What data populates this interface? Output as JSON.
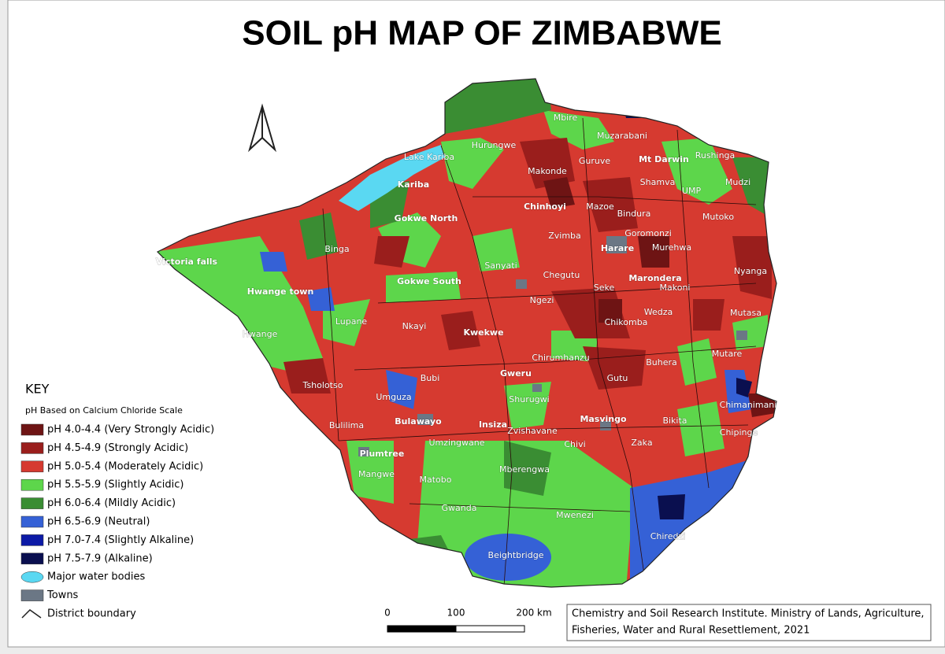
{
  "title": "SOIL pH MAP OF ZIMBABWE",
  "key": {
    "heading": "KEY",
    "subheading": "pH Based on Calcium Chloride Scale",
    "items": [
      {
        "label": "pH 4.0-4.4 (Very Strongly Acidic)",
        "color": "#6e1414",
        "symbol": "rect"
      },
      {
        "label": "pH 4.5-4.9 (Strongly Acidic)",
        "color": "#9a1e1c",
        "symbol": "rect"
      },
      {
        "label": "pH 5.0-5.4 (Moderately Acidic)",
        "color": "#d63a30",
        "symbol": "rect"
      },
      {
        "label": "pH 5.5-5.9 (Slightly Acidic)",
        "color": "#5dd64b",
        "symbol": "rect"
      },
      {
        "label": "pH 6.0-6.4 (Mildly Acidic)",
        "color": "#3a8d33",
        "symbol": "rect"
      },
      {
        "label": "pH 6.5-6.9 (Neutral)",
        "color": "#3561d6",
        "symbol": "rect"
      },
      {
        "label": "pH 7.0-7.4 (Slightly Alkaline)",
        "color": "#0c1aa6",
        "symbol": "rect"
      },
      {
        "label": "pH 7.5-7.9 (Alkaline)",
        "color": "#0a0f4f",
        "symbol": "rect"
      },
      {
        "label": "Major water bodies",
        "color": "#5ad8f2",
        "symbol": "ellipse"
      },
      {
        "label": "Towns",
        "color": "#6b7785",
        "symbol": "rect"
      },
      {
        "label": "District boundary",
        "color": "#222222",
        "symbol": "line"
      }
    ]
  },
  "districts": [
    {
      "label": "Mbire"
    },
    {
      "label": "Muzarabani"
    },
    {
      "label": "Hurungwe"
    },
    {
      "label": "Guruve"
    },
    {
      "label": "Mt Darwin"
    },
    {
      "label": "Rushinga"
    },
    {
      "label": "Lake Kariba"
    },
    {
      "label": "Kariba"
    },
    {
      "label": "Makonde"
    },
    {
      "label": "Shamva"
    },
    {
      "label": "UMP"
    },
    {
      "label": "Mudzi"
    },
    {
      "label": "Chinhoyi"
    },
    {
      "label": "Mazoe"
    },
    {
      "label": "Bindura"
    },
    {
      "label": "Mutoko"
    },
    {
      "label": "Gokwe North"
    },
    {
      "label": "Zvimba"
    },
    {
      "label": "Goromonzi"
    },
    {
      "label": "Harare"
    },
    {
      "label": "Murehwa"
    },
    {
      "label": "Victoria falls"
    },
    {
      "label": "Binga"
    },
    {
      "label": "Sanyati"
    },
    {
      "label": "Chegutu"
    },
    {
      "label": "Marondera"
    },
    {
      "label": "Nyanga"
    },
    {
      "label": "Gokwe South"
    },
    {
      "label": "Seke"
    },
    {
      "label": "Makoni"
    },
    {
      "label": "Hwange town"
    },
    {
      "label": "Ngezi"
    },
    {
      "label": "Lupane"
    },
    {
      "label": "Nkayi"
    },
    {
      "label": "Wedza"
    },
    {
      "label": "Chikomba"
    },
    {
      "label": "Mutasa"
    },
    {
      "label": "Hwange"
    },
    {
      "label": "Kwekwe"
    },
    {
      "label": "Chirumhanzu"
    },
    {
      "label": "Buhera"
    },
    {
      "label": "Mutare"
    },
    {
      "label": "Gweru"
    },
    {
      "label": "Bubi"
    },
    {
      "label": "Gutu"
    },
    {
      "label": "Tsholotso"
    },
    {
      "label": "Umguza"
    },
    {
      "label": "Shurugwi"
    },
    {
      "label": "Chimanimani"
    },
    {
      "label": "Bulawayo"
    },
    {
      "label": "Insiza"
    },
    {
      "label": "Masvingo"
    },
    {
      "label": "Bikita"
    },
    {
      "label": "Zvishavane"
    },
    {
      "label": "Chipinge"
    },
    {
      "label": "Bulilima"
    },
    {
      "label": "Umzingwane"
    },
    {
      "label": "Chivi"
    },
    {
      "label": "Zaka"
    },
    {
      "label": "Plumtree"
    },
    {
      "label": "Mangwe"
    },
    {
      "label": "Matobo"
    },
    {
      "label": "Mberengwa"
    },
    {
      "label": "Gwanda"
    },
    {
      "label": "Mwenezi"
    },
    {
      "label": "Chiredzi"
    },
    {
      "label": "Beightbridge"
    }
  ],
  "scale_bar": {
    "labels": [
      "0",
      "100",
      "200 km"
    ]
  },
  "credit": [
    "Chemistry and Soil Research Institute. Ministry of Lands, Agriculture,",
    "Fisheries, Water and Rural Resettlement, 2021"
  ]
}
